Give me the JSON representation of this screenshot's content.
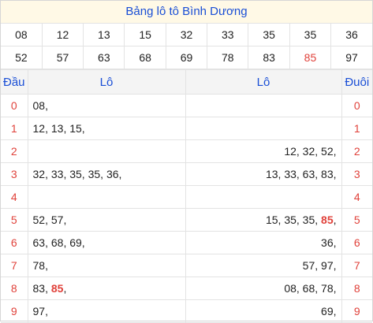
{
  "title": "Bảng lô tô Bình Dương",
  "results": [
    [
      {
        "v": "08"
      },
      {
        "v": "12"
      },
      {
        "v": "13"
      },
      {
        "v": "15"
      },
      {
        "v": "32"
      },
      {
        "v": "33"
      },
      {
        "v": "35"
      },
      {
        "v": "35"
      },
      {
        "v": "36"
      }
    ],
    [
      {
        "v": "52"
      },
      {
        "v": "57"
      },
      {
        "v": "63"
      },
      {
        "v": "68"
      },
      {
        "v": "69"
      },
      {
        "v": "78"
      },
      {
        "v": "83"
      },
      {
        "v": "85",
        "hl": true
      },
      {
        "v": "97"
      }
    ]
  ],
  "headers": {
    "dau": "Đầu",
    "lo_left": "Lô",
    "lo_right": "Lô",
    "duoi": "Đuôi"
  },
  "rows": [
    {
      "idx": "0",
      "left": [
        {
          "t": "08"
        }
      ],
      "right": [],
      "tail": "0"
    },
    {
      "idx": "1",
      "left": [
        {
          "t": "12"
        },
        {
          "t": "13"
        },
        {
          "t": "15"
        }
      ],
      "right": [],
      "tail": "1"
    },
    {
      "idx": "2",
      "left": [],
      "right": [
        {
          "t": "12"
        },
        {
          "t": "32"
        },
        {
          "t": "52"
        }
      ],
      "tail": "2"
    },
    {
      "idx": "3",
      "left": [
        {
          "t": "32"
        },
        {
          "t": "33"
        },
        {
          "t": "35"
        },
        {
          "t": "35"
        },
        {
          "t": "36"
        }
      ],
      "right": [
        {
          "t": "13"
        },
        {
          "t": "33"
        },
        {
          "t": "63"
        },
        {
          "t": "83"
        }
      ],
      "tail": "3"
    },
    {
      "idx": "4",
      "left": [],
      "right": [],
      "tail": "4"
    },
    {
      "idx": "5",
      "left": [
        {
          "t": "52"
        },
        {
          "t": "57"
        }
      ],
      "right": [
        {
          "t": "15"
        },
        {
          "t": "35"
        },
        {
          "t": "35"
        },
        {
          "t": "85",
          "hl": true
        }
      ],
      "tail": "5"
    },
    {
      "idx": "6",
      "left": [
        {
          "t": "63"
        },
        {
          "t": "68"
        },
        {
          "t": "69"
        }
      ],
      "right": [
        {
          "t": "36"
        }
      ],
      "tail": "6"
    },
    {
      "idx": "7",
      "left": [
        {
          "t": "78"
        }
      ],
      "right": [
        {
          "t": "57"
        },
        {
          "t": "97"
        }
      ],
      "tail": "7"
    },
    {
      "idx": "8",
      "left": [
        {
          "t": "83"
        },
        {
          "t": "85",
          "hl": true
        }
      ],
      "right": [
        {
          "t": "08"
        },
        {
          "t": "68"
        },
        {
          "t": "78"
        }
      ],
      "tail": "8"
    },
    {
      "idx": "9",
      "left": [
        {
          "t": "97"
        }
      ],
      "right": [
        {
          "t": "69"
        }
      ],
      "tail": "9"
    }
  ]
}
